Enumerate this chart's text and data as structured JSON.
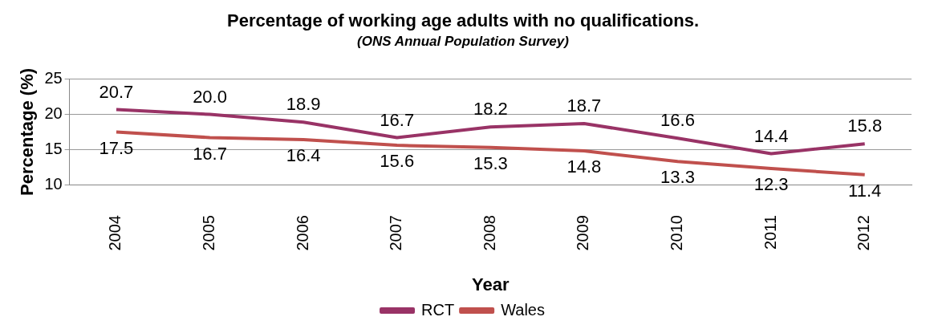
{
  "chart_data": {
    "type": "line",
    "title": "Percentage of working age adults with no qualifications.",
    "subtitle": "(ONS Annual Population Survey)",
    "xlabel": "Year",
    "ylabel": "Percentage (%)",
    "categories": [
      "2004",
      "2005",
      "2006",
      "2007",
      "2008",
      "2009",
      "2010",
      "2011",
      "2012"
    ],
    "series": [
      {
        "name": "RCT",
        "color": "#993366",
        "values": [
          20.7,
          20.0,
          18.9,
          16.7,
          18.2,
          18.7,
          16.6,
          14.4,
          15.8
        ],
        "value_labels": [
          "20.7",
          "20.0",
          "18.9",
          "16.7",
          "18.2",
          "18.7",
          "16.6",
          "14.4",
          "15.8"
        ]
      },
      {
        "name": "Wales",
        "color": "#c0504d",
        "values": [
          17.5,
          16.7,
          16.4,
          15.6,
          15.3,
          14.8,
          13.3,
          12.3,
          11.4
        ],
        "value_labels": [
          "17.5",
          "16.7",
          "16.4",
          "15.6",
          "15.3",
          "14.8",
          "13.3",
          "12.3",
          "11.4"
        ]
      }
    ],
    "ylim": [
      10,
      25
    ],
    "yticks": [
      10,
      15,
      20,
      25
    ],
    "grid": "y",
    "legend": "bottom",
    "marker": "none",
    "line_style": "solid"
  }
}
